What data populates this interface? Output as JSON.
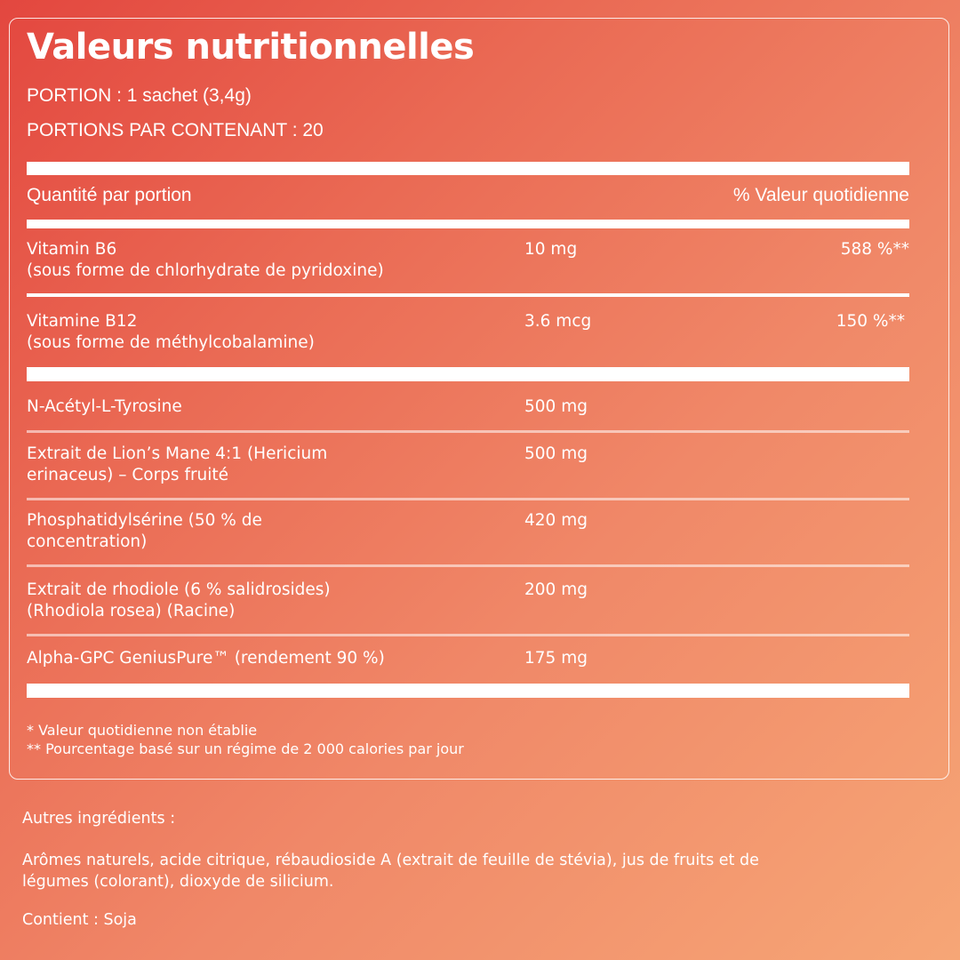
{
  "label": {
    "title": "Valeurs nutritionnelles",
    "serving": "PORTION : 1 sachet (3,4g)",
    "servings_per_container": "PORTIONS PAR CONTENANT : 20",
    "header_amount": "Quantité par portion",
    "header_dv": "% Valeur quotidienne",
    "vitamins": [
      {
        "name": "Vitamin B6",
        "detail": "(sous forme de chlorhydrate de pyridoxine)",
        "amount": "10 mg",
        "dv": "588 %**"
      },
      {
        "name": "Vitamine B12",
        "detail": "(sous forme de méthylcobalamine)",
        "amount": "3.6 mcg",
        "dv": "150 %**"
      }
    ],
    "ingredients": [
      {
        "line1": "N-Acétyl-L-Tyrosine",
        "line2": "",
        "amount": "500 mg"
      },
      {
        "line1": "Extrait de Lion’s Mane 4:1 (Hericium",
        "line2": "erinaceus) – Corps fruité",
        "amount": "500 mg"
      },
      {
        "line1": "Phosphatidylsérine (50 % de",
        "line2": "concentration)",
        "amount": "420 mg"
      },
      {
        "line1": "Extrait de rhodiole (6 % salidrosides)",
        "line2": "(Rhodiola rosea) (Racine)",
        "amount": "200 mg"
      },
      {
        "line1": "Alpha-GPC GeniusPure™ (rendement 90 %)",
        "line2": "",
        "amount": "175 mg"
      }
    ],
    "footnote1": "* Valeur quotidienne non établie",
    "footnote2": "** Pourcentage basé sur un régime de 2 000 calories par jour"
  },
  "other": {
    "heading": "Autres ingrédients :",
    "text_line1": "Arômes naturels, acide citrique, rébaudioside A (extrait de feuille de stévia), jus de fruits et de",
    "text_line2": "légumes (colorant), dioxyde de silicium.",
    "contains": "Contient : Soja"
  },
  "colors": {
    "gradient_start": "#e3473f",
    "gradient_end": "#f6a676",
    "text": "#ffffff"
  }
}
